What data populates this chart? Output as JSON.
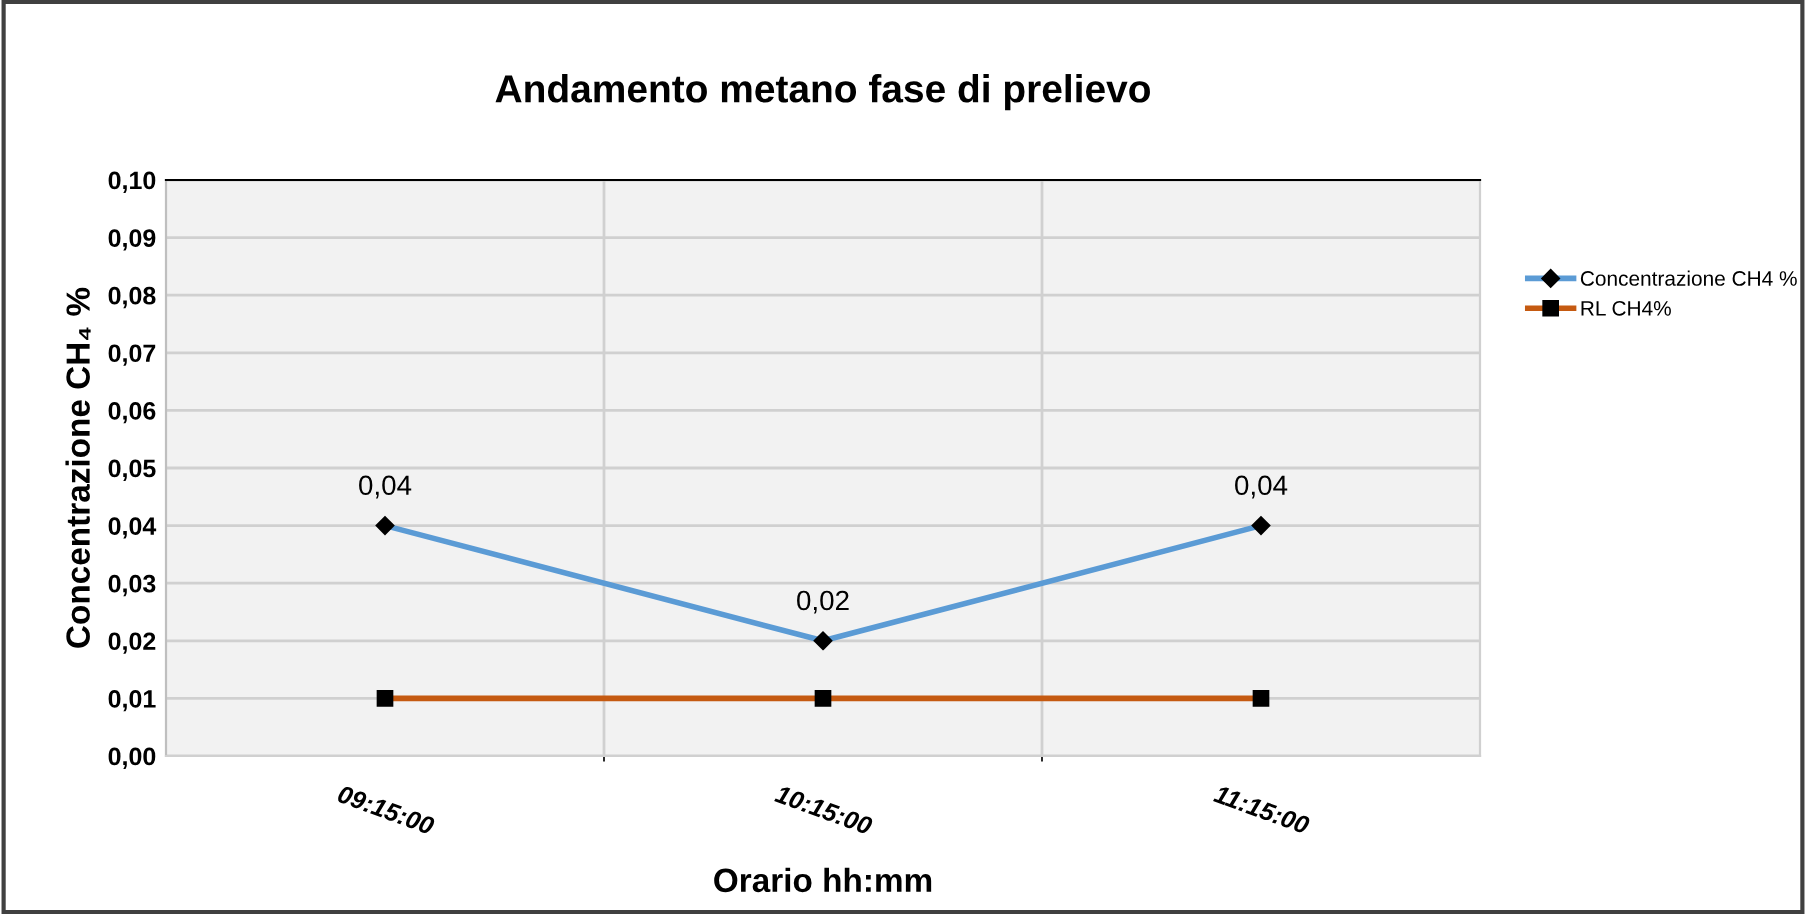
{
  "chart_data": {
    "type": "line",
    "title": "Andamento metano fase di prelievo",
    "xlabel": "Orario hh:mm",
    "ylabel": "Concentrazione CH₄ %",
    "categories": [
      "09:15:00",
      "10:15:00",
      "11:15:00"
    ],
    "series": [
      {
        "name": "Concentrazione CH4 %",
        "color": "#5b9bd5",
        "values": [
          0.04,
          0.02,
          0.04
        ],
        "marker": "diamond",
        "value_labels": [
          "0,04",
          "0,02",
          "0,04"
        ]
      },
      {
        "name": "RL CH4%",
        "color": "#c55a11",
        "values": [
          0.01,
          0.01,
          0.01
        ],
        "marker": "square"
      }
    ],
    "ylim": [
      0,
      0.1
    ],
    "yticks": [
      {
        "value": 0,
        "label": "0,00"
      },
      {
        "value": 0.01,
        "label": "0,01"
      },
      {
        "value": 0.02,
        "label": "0,02"
      },
      {
        "value": 0.03,
        "label": "0,03"
      },
      {
        "value": 0.04,
        "label": "0,04"
      },
      {
        "value": 0.05,
        "label": "0,05"
      },
      {
        "value": 0.06,
        "label": "0,06"
      },
      {
        "value": 0.07,
        "label": "0,07"
      },
      {
        "value": 0.08,
        "label": "0,08"
      },
      {
        "value": 0.09,
        "label": "0,09"
      },
      {
        "value": 0.1,
        "label": "0,10"
      }
    ],
    "grid": true,
    "legend": "right"
  }
}
